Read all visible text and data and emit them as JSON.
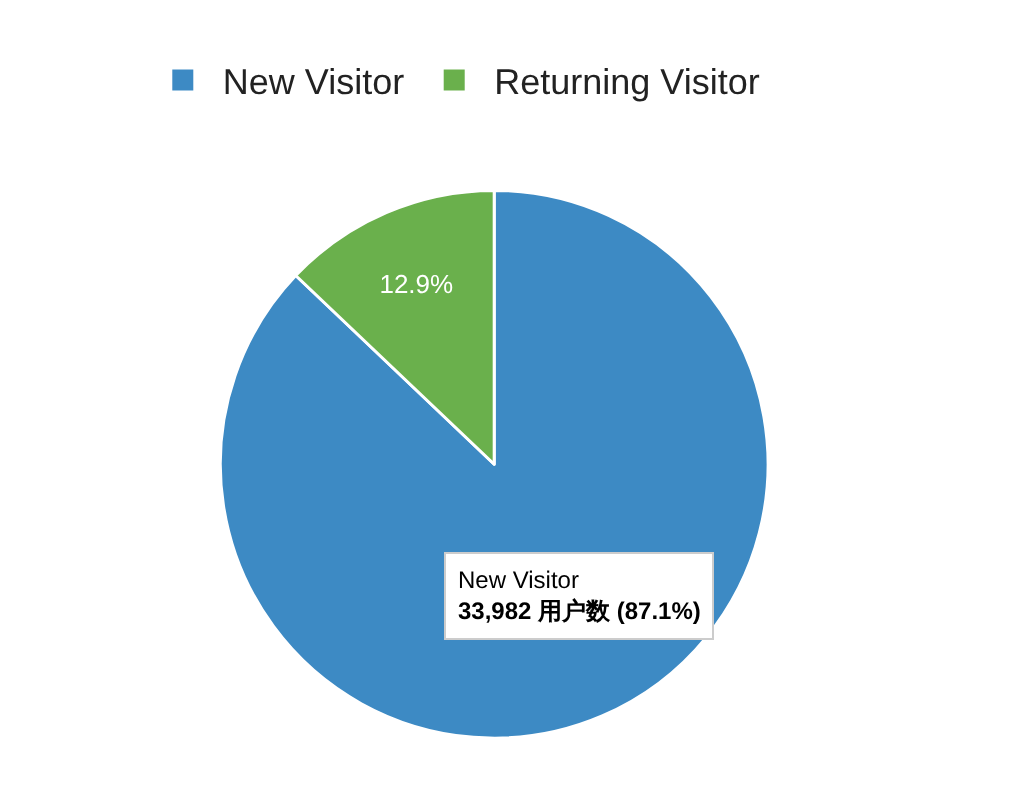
{
  "chart_data": {
    "type": "pie",
    "categories": [
      "New Visitor",
      "Returning Visitor"
    ],
    "values": [
      87.1,
      12.9
    ],
    "colors": [
      "#3d8ac4",
      "#6ab04c"
    ],
    "value_labels": [
      null,
      "12.9%"
    ],
    "legend": "top left",
    "annotations": [
      "New Visitor\n33,982 用户数 (87.1%)"
    ]
  }
}
